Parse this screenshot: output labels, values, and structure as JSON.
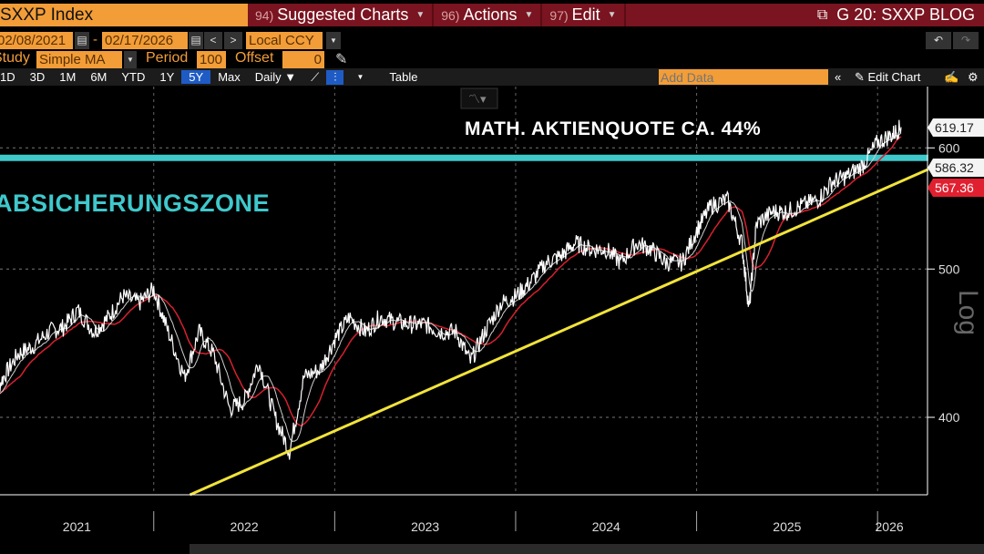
{
  "header": {
    "security": "SXXP Index",
    "menus": [
      {
        "num": "94)",
        "label": "Suggested Charts"
      },
      {
        "num": "96)",
        "label": "Actions"
      },
      {
        "num": "97)",
        "label": "Edit"
      }
    ],
    "title": "G 20: SXXP BLOG"
  },
  "range": {
    "start": "02/08/2021",
    "separator": "-",
    "end": "02/17/2026",
    "currency": "Local CCY"
  },
  "study": {
    "label": "Study",
    "value": "Simple MA",
    "period_label": "Period",
    "period": "100",
    "offset_label": "Offset",
    "offset": "0"
  },
  "toolbar": {
    "periods": [
      "1D",
      "3D",
      "1M",
      "6M",
      "YTD",
      "1Y",
      "5Y",
      "Max"
    ],
    "selected": "5Y",
    "frequency": "Daily ▼",
    "table": "Table",
    "add_data_placeholder": "Add Data",
    "edit_chart": "Edit Chart"
  },
  "colors": {
    "price": "#ffffff",
    "ma_short": "#cfcfcf",
    "ma_long": "#d8202e",
    "trend": "#f2e33a",
    "zone": "#3fc8cc",
    "accent": "#f29d38",
    "menu": "#7a1420"
  },
  "chart_data": {
    "type": "line",
    "title": "SXXP Index",
    "ylabel": "Log",
    "yscale": "log",
    "ylim": [
      356,
      658
    ],
    "xlim": [
      2021.1,
      2026.13
    ],
    "yticks": [
      400,
      500,
      600
    ],
    "xticks": [
      "2021",
      "2022",
      "2023",
      "2024",
      "2025",
      "2026"
    ],
    "grid": true,
    "annotations": [
      "MATH. AKTIENQUOTE CA. 44%",
      "ABSICHERUNGSZONE"
    ],
    "last_values": {
      "price": "619.17",
      "ma_short": "586.32",
      "ma_long": "567.36"
    },
    "series": [
      {
        "name": "SXXP Index",
        "x": [
          2021.1,
          2021.17,
          2021.25,
          2021.33,
          2021.42,
          2021.5,
          2021.58,
          2021.67,
          2021.75,
          2021.83,
          2021.92,
          2022.0,
          2022.08,
          2022.17,
          2022.25,
          2022.33,
          2022.42,
          2022.5,
          2022.58,
          2022.67,
          2022.75,
          2022.83,
          2022.92,
          2023.0,
          2023.08,
          2023.17,
          2023.25,
          2023.33,
          2023.42,
          2023.5,
          2023.58,
          2023.67,
          2023.75,
          2023.83,
          2023.92,
          2024.0,
          2024.08,
          2024.17,
          2024.25,
          2024.33,
          2024.42,
          2024.5,
          2024.58,
          2024.67,
          2024.75,
          2024.83,
          2024.92,
          2025.0,
          2025.08,
          2025.17,
          2025.25,
          2025.29,
          2025.33,
          2025.42,
          2025.5,
          2025.58,
          2025.67,
          2025.75,
          2025.83,
          2025.92,
          2026.0,
          2026.08,
          2026.13
        ],
        "y": [
          410,
          425,
          440,
          445,
          455,
          458,
          470,
          455,
          465,
          480,
          475,
          485,
          455,
          425,
          455,
          440,
          405,
          410,
          435,
          400,
          380,
          425,
          430,
          450,
          465,
          455,
          465,
          462,
          460,
          460,
          455,
          455,
          435,
          455,
          475,
          480,
          490,
          505,
          510,
          520,
          515,
          515,
          505,
          520,
          515,
          505,
          505,
          530,
          550,
          555,
          520,
          470,
          535,
          545,
          545,
          550,
          555,
          570,
          575,
          585,
          605,
          612,
          619
        ]
      },
      {
        "name": "Trendline",
        "x": [
          2022.2,
          2026.28
        ],
        "y": [
          356,
          581
        ]
      },
      {
        "name": "Absicherungszone",
        "x": [
          2021.1,
          2026.28
        ],
        "y": [
          591,
          591
        ]
      }
    ]
  }
}
